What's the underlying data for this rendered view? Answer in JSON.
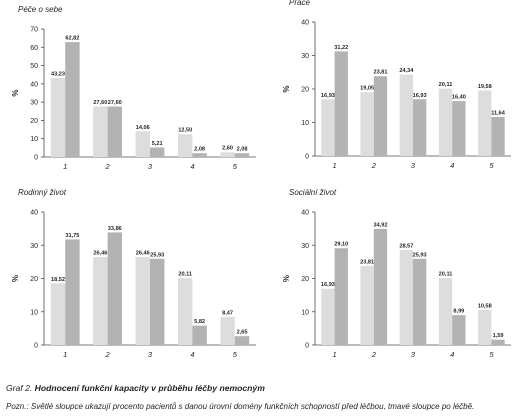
{
  "figure": {
    "caption_prefix": "Graf 2.",
    "caption_title": "Hodnocení funkční kapacity v průběhu léčby nemocným",
    "note": "Pozn.: Světlé sloupce ukazují procento pacientů s danou úrovní domény funkčních schopností před léčbou, tmavé sloupce po léčbě."
  },
  "colors": {
    "light": "#dddddd",
    "dark": "#b3b3b3",
    "axis": "#4d4d4d",
    "text": "#231f20"
  },
  "chart_data": [
    {
      "type": "bar",
      "title": "Péče o sebe",
      "ylabel": "%",
      "ylim": [
        0,
        70
      ],
      "yticks": [
        0,
        10,
        20,
        30,
        40,
        50,
        60,
        70
      ],
      "categories": [
        "1",
        "2",
        "3",
        "4",
        "5"
      ],
      "series": [
        {
          "values": [
            43.23,
            27.6,
            14.06,
            12.5,
            2.6
          ],
          "labels": [
            "43,23",
            "27,60",
            "14,06",
            "12,50",
            "2,60"
          ]
        },
        {
          "values": [
            62.82,
            27.6,
            5.21,
            2.08,
            2.08
          ],
          "labels": [
            "62,82",
            "27,60",
            "5,21",
            "2,08",
            "2,08"
          ]
        }
      ],
      "grid": false
    },
    {
      "type": "bar",
      "title": "Práce",
      "ylabel": "%",
      "ylim": [
        0,
        40
      ],
      "yticks": [
        0,
        10,
        20,
        30,
        40
      ],
      "categories": [
        "1",
        "2",
        "3",
        "4",
        "5"
      ],
      "series": [
        {
          "values": [
            16.93,
            19.05,
            24.34,
            20.11,
            19.58
          ],
          "labels": [
            "16,93",
            "19,05",
            "24,34",
            "20,11",
            "19,58"
          ]
        },
        {
          "values": [
            31.22,
            23.81,
            16.93,
            16.4,
            11.64
          ],
          "labels": [
            "31,22",
            "23,81",
            "16,93",
            "16,40",
            "11,64"
          ]
        }
      ],
      "grid": false
    },
    {
      "type": "bar",
      "title": "Rodinný život",
      "ylabel": "%",
      "ylim": [
        0,
        40
      ],
      "yticks": [
        0,
        10,
        20,
        30,
        40
      ],
      "categories": [
        "1",
        "2",
        "3",
        "4",
        "5"
      ],
      "series": [
        {
          "values": [
            18.52,
            26.46,
            26.46,
            20.11,
            8.47
          ],
          "labels": [
            "18,52",
            "26,46",
            "26,46",
            "20,11",
            "8,47"
          ]
        },
        {
          "values": [
            31.75,
            33.86,
            25.93,
            5.82,
            2.65
          ],
          "labels": [
            "31,75",
            "33,86",
            "25,93",
            "5,82",
            "2,65"
          ]
        }
      ],
      "grid": false
    },
    {
      "type": "bar",
      "title": "Sociální život",
      "ylabel": "%",
      "ylim": [
        0,
        40
      ],
      "yticks": [
        0,
        10,
        20,
        30,
        40
      ],
      "categories": [
        "1",
        "2",
        "3",
        "4",
        "5"
      ],
      "series": [
        {
          "values": [
            16.93,
            23.81,
            28.57,
            20.11,
            10.58
          ],
          "labels": [
            "16,93",
            "23,81",
            "28,57",
            "20,11",
            "10,58"
          ]
        },
        {
          "values": [
            29.1,
            34.92,
            25.93,
            8.99,
            1.59
          ],
          "labels": [
            "29,10",
            "34,92",
            "25,93",
            "8,99",
            "1,59"
          ]
        }
      ],
      "grid": false
    }
  ]
}
